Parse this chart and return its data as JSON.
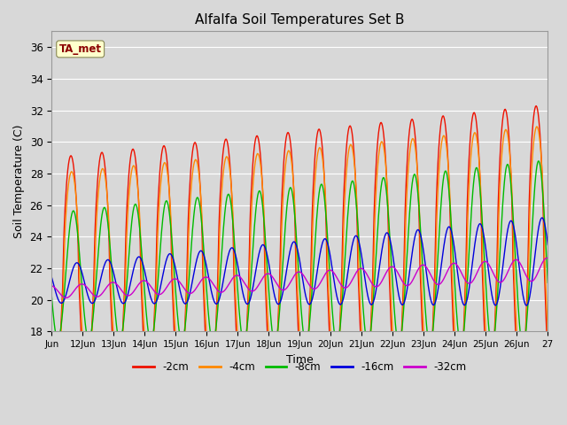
{
  "title": "Alfalfa Soil Temperatures Set B",
  "xlabel": "Time",
  "ylabel": "Soil Temperature (C)",
  "ylim": [
    18,
    37
  ],
  "background_color": "#d8d8d8",
  "plot_bg_color": "#d8d8d8",
  "grid_color": "#ffffff",
  "annotation_text": "TA_met",
  "annotation_color": "#8b0000",
  "annotation_bg": "#ffffcc",
  "x_tick_labels": [
    "Jun",
    "12Jun",
    "13Jun",
    "14Jun",
    "15Jun",
    "16Jun",
    "17Jun",
    "18Jun",
    "19Jun",
    "20Jun",
    "21Jun",
    "22Jun",
    "23Jun",
    "24Jun",
    "25Jun",
    "26Jun",
    "27"
  ],
  "series": [
    {
      "label": "-2cm",
      "color": "#ee1100",
      "lw": 1.0
    },
    {
      "label": "-4cm",
      "color": "#ff8800",
      "lw": 1.0
    },
    {
      "label": "-8cm",
      "color": "#00bb00",
      "lw": 1.0
    },
    {
      "label": "-16cm",
      "color": "#0000dd",
      "lw": 1.0
    },
    {
      "label": "-32cm",
      "color": "#cc00cc",
      "lw": 1.0
    }
  ]
}
